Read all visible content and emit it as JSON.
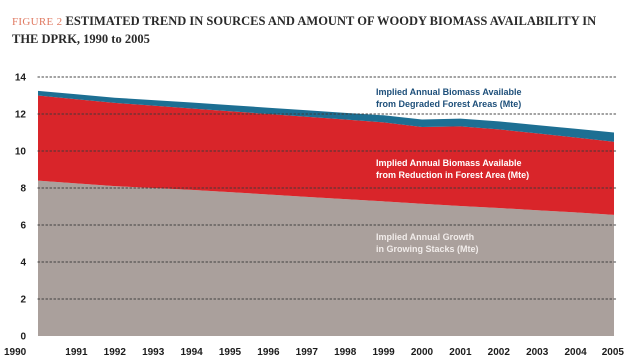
{
  "title": {
    "figure_label": "FIGURE 2",
    "text": "ESTIMATED TREND IN SOURCES AND AMOUNT OF WOODY BIOMASS AVAILABILITY IN THE DPRK, 1990 to 2005"
  },
  "colors": {
    "growth": "#aaa09c",
    "reduction": "#d9252a",
    "degraded": "#1d6f93",
    "growth_label": "#f1ecea",
    "reduction_label": "#ffffff",
    "degraded_label": "#1d4f7a"
  },
  "chart_data": {
    "type": "area",
    "stacked": true,
    "x": [
      1990,
      1991,
      1992,
      1993,
      1994,
      1995,
      1996,
      1997,
      1998,
      1999,
      2000,
      2001,
      2002,
      2003,
      2004,
      2005
    ],
    "ylim": [
      0,
      14
    ],
    "yticks": [
      0,
      2,
      4,
      6,
      8,
      10,
      12,
      14
    ],
    "grid": "horizontal dotted",
    "series": [
      {
        "name": "Implied Annual Growth in Growing Stacks (Mte)",
        "label_lines": [
          "Implied Annual Growth",
          "in Growing Stacks (Mte)"
        ],
        "values": [
          8.4,
          8.25,
          8.1,
          8.0,
          7.9,
          7.78,
          7.65,
          7.52,
          7.4,
          7.28,
          7.15,
          7.03,
          6.92,
          6.8,
          6.68,
          6.55
        ]
      },
      {
        "name": "Implied Annual Biomass Available from Reduction in Forest Area (Mte)",
        "label_lines": [
          "Implied Annual Biomass Available",
          "from Reduction in Forest Area (Mte)"
        ],
        "values": [
          4.6,
          4.55,
          4.5,
          4.45,
          4.4,
          4.37,
          4.35,
          4.33,
          4.3,
          4.27,
          4.15,
          4.3,
          4.25,
          4.15,
          4.05,
          3.95
        ]
      },
      {
        "name": "Implied Annual Biomass Available from Degraded Forest Areas (Mte)",
        "label_lines": [
          "Implied Annual Biomass Available",
          "from Degraded Forest Areas (Mte)"
        ],
        "values": [
          0.25,
          0.27,
          0.28,
          0.3,
          0.32,
          0.33,
          0.34,
          0.35,
          0.36,
          0.38,
          0.4,
          0.42,
          0.43,
          0.45,
          0.47,
          0.5
        ]
      }
    ]
  }
}
